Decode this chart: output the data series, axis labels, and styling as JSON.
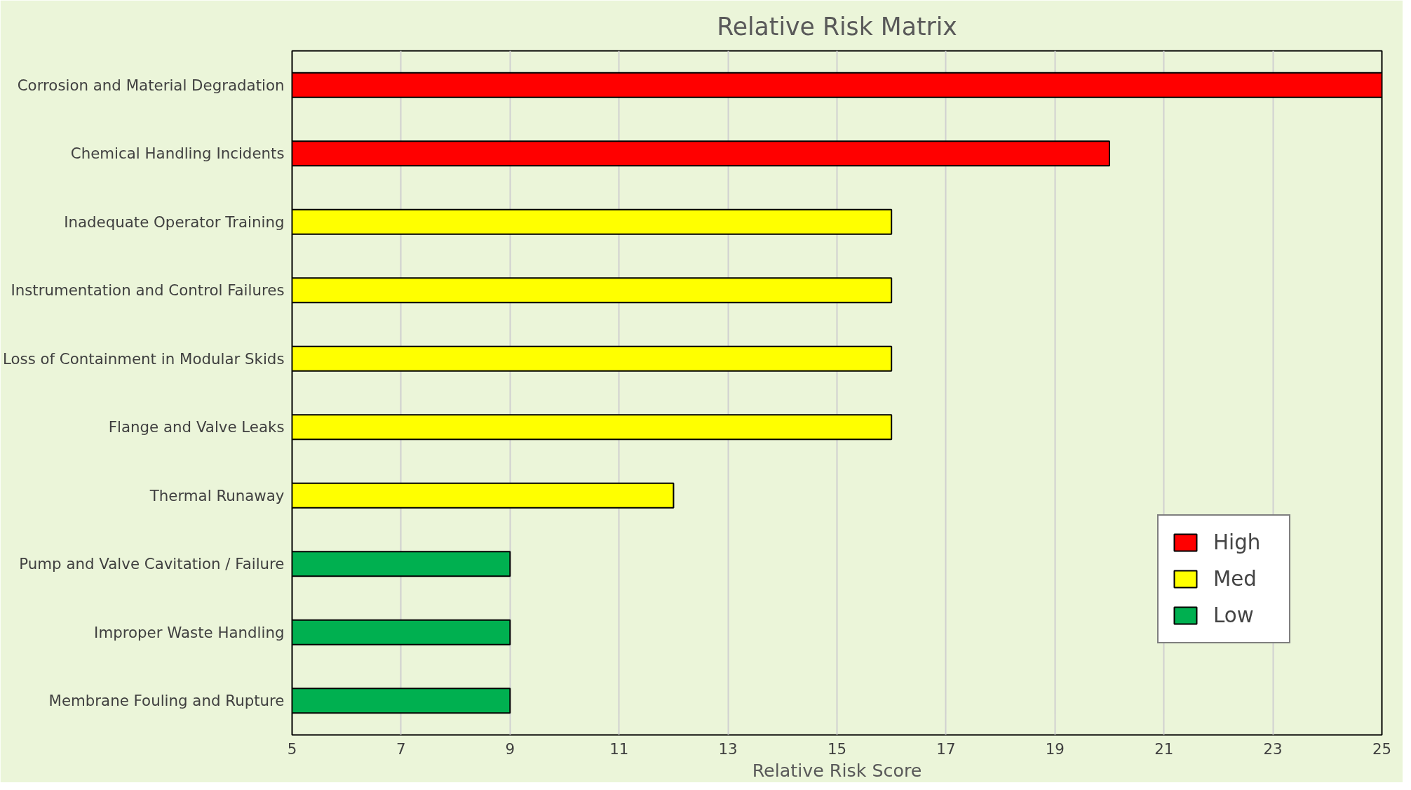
{
  "chart_data": {
    "type": "bar",
    "orientation": "horizontal",
    "title": "Relative Risk Matrix",
    "xlabel": "Relative Risk Score",
    "categories": [
      "Corrosion and Material Degradation",
      "Chemical Handling Incidents",
      "Inadequate Operator Training",
      "Instrumentation and Control Failures",
      "Loss of Containment in Modular Skids",
      "Flange and Valve Leaks",
      "Thermal Runaway",
      "Pump and Valve Cavitation / Failure",
      "Improper Waste Handling",
      "Membrane Fouling and Rupture"
    ],
    "series": [
      {
        "name": "High",
        "color": "#ff0000",
        "values": [
          25,
          20,
          null,
          null,
          null,
          null,
          null,
          null,
          null,
          null
        ]
      },
      {
        "name": "Med",
        "color": "#ffff00",
        "values": [
          null,
          null,
          16,
          16,
          16,
          16,
          12,
          null,
          null,
          null
        ]
      },
      {
        "name": "Low",
        "color": "#00b050",
        "values": [
          null,
          null,
          null,
          null,
          null,
          null,
          null,
          9,
          9,
          9
        ]
      }
    ],
    "xlim": [
      5,
      25
    ],
    "xticks": [
      5,
      7,
      9,
      11,
      13,
      15,
      17,
      19,
      21,
      23,
      25
    ],
    "grid": "x",
    "legend": "bottom right"
  }
}
